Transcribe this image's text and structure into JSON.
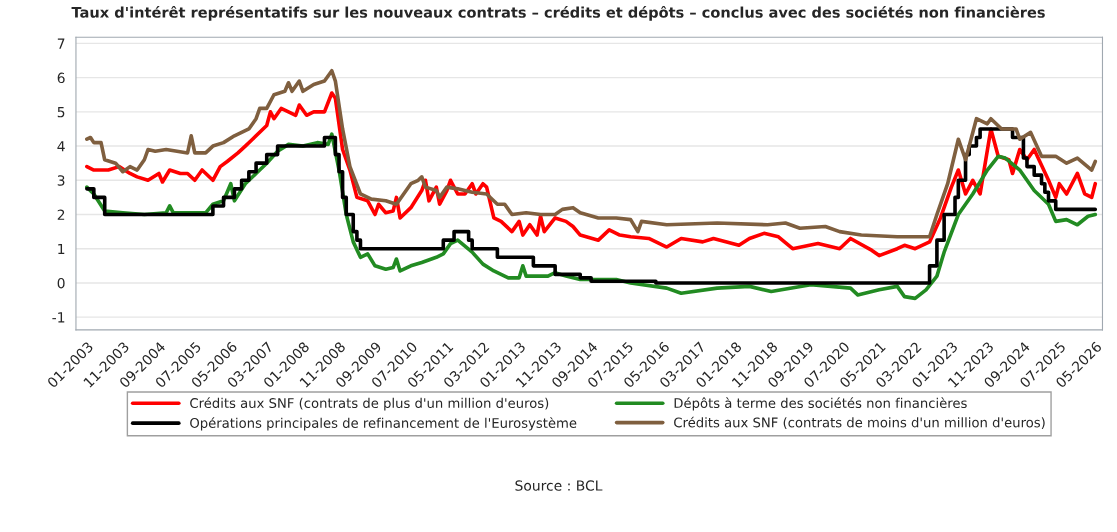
{
  "chart_data": {
    "type": "line",
    "title": "Taux d'intérêt représentatifs sur les nouveaux contrats – crédits et dépôts – conclus avec des sociétés non financières",
    "annotations": [
      "Source : BCL"
    ],
    "xlim": [
      "2002-10",
      "2026-07"
    ],
    "ylim": [
      -1.37,
      7.18
    ],
    "yticks": [
      -1,
      0,
      1,
      2,
      3,
      4,
      5,
      6,
      7
    ],
    "xticks": [
      {
        "value": "2003-01",
        "label": "01-2003"
      },
      {
        "value": "2003-11",
        "label": "11-2003"
      },
      {
        "value": "2004-09",
        "label": "09-2004"
      },
      {
        "value": "2005-07",
        "label": "07-2005"
      },
      {
        "value": "2006-05",
        "label": "05-2006"
      },
      {
        "value": "2007-03",
        "label": "03-2007"
      },
      {
        "value": "2008-01",
        "label": "01-2008"
      },
      {
        "value": "2008-11",
        "label": "11-2008"
      },
      {
        "value": "2009-09",
        "label": "09-2009"
      },
      {
        "value": "2010-07",
        "label": "07-2010"
      },
      {
        "value": "2011-05",
        "label": "05-2011"
      },
      {
        "value": "2012-03",
        "label": "03-2012"
      },
      {
        "value": "2013-01",
        "label": "01-2013"
      },
      {
        "value": "2013-11",
        "label": "11-2013"
      },
      {
        "value": "2014-09",
        "label": "09-2014"
      },
      {
        "value": "2015-07",
        "label": "07-2015"
      },
      {
        "value": "2016-05",
        "label": "05-2016"
      },
      {
        "value": "2017-03",
        "label": "03-2017"
      },
      {
        "value": "2018-01",
        "label": "01-2018"
      },
      {
        "value": "2018-11",
        "label": "11-2018"
      },
      {
        "value": "2019-09",
        "label": "09-2019"
      },
      {
        "value": "2020-07",
        "label": "07-2020"
      },
      {
        "value": "2021-05",
        "label": "05-2021"
      },
      {
        "value": "2022-03",
        "label": "03-2022"
      },
      {
        "value": "2023-01",
        "label": "01-2023"
      },
      {
        "value": "2023-11",
        "label": "11-2023"
      },
      {
        "value": "2024-09",
        "label": "09-2024"
      },
      {
        "value": "2025-07",
        "label": "07-2025"
      },
      {
        "value": "2026-05",
        "label": "05-2026"
      }
    ],
    "grid": "y",
    "legend": "bottom",
    "marker": "none",
    "line_style": "solid",
    "series": [
      {
        "name": "Crédits aux SNF (contrats de plus d'un million d'euros)",
        "color": "#ff0000",
        "x": [
          "2003-01",
          "2003-03",
          "2003-07",
          "2003-10",
          "2004-01",
          "2004-03",
          "2004-06",
          "2004-09",
          "2004-10",
          "2004-12",
          "2005-03",
          "2005-05",
          "2005-07",
          "2005-09",
          "2005-12",
          "2006-02",
          "2006-04",
          "2006-07",
          "2006-09",
          "2006-11",
          "2007-03",
          "2007-04",
          "2007-05",
          "2007-07",
          "2007-09",
          "2007-11",
          "2007-12",
          "2008-02",
          "2008-04",
          "2008-07",
          "2008-09",
          "2008-10",
          "2008-12",
          "2009-02",
          "2009-04",
          "2009-07",
          "2009-09",
          "2009-10",
          "2009-12",
          "2010-02",
          "2010-03",
          "2010-04",
          "2010-07",
          "2010-10",
          "2010-11",
          "2010-12",
          "2011-02",
          "2011-03",
          "2011-05",
          "2011-06",
          "2011-08",
          "2011-10",
          "2011-12",
          "2012-01",
          "2012-03",
          "2012-04",
          "2012-06",
          "2012-08",
          "2012-11",
          "2013-01",
          "2013-02",
          "2013-04",
          "2013-06",
          "2013-07",
          "2013-08",
          "2013-11",
          "2014-02",
          "2014-04",
          "2014-06",
          "2014-11",
          "2015-02",
          "2015-05",
          "2015-08",
          "2016-01",
          "2016-06",
          "2016-10",
          "2017-04",
          "2017-07",
          "2018-02",
          "2018-05",
          "2018-09",
          "2019-01",
          "2019-05",
          "2019-12",
          "2020-06",
          "2020-09",
          "2021-03",
          "2021-05",
          "2021-10",
          "2021-12",
          "2022-03",
          "2022-07",
          "2022-10",
          "2023-01",
          "2023-03",
          "2023-05",
          "2023-07",
          "2023-09",
          "2023-12",
          "2024-02",
          "2024-05",
          "2024-06",
          "2024-08",
          "2024-10",
          "2024-12",
          "2025-04",
          "2025-06",
          "2025-07",
          "2025-09",
          "2025-12",
          "2026-02",
          "2026-04",
          "2026-05"
        ],
        "values": [
          3.4,
          3.3,
          3.3,
          3.4,
          3.2,
          3.1,
          3.0,
          3.2,
          2.95,
          3.3,
          3.2,
          3.2,
          3.0,
          3.3,
          3.0,
          3.4,
          3.55,
          3.8,
          4.0,
          4.2,
          4.6,
          5.0,
          4.8,
          5.1,
          5.0,
          4.9,
          5.2,
          4.9,
          5.0,
          5.0,
          5.55,
          5.4,
          3.9,
          3.3,
          2.5,
          2.4,
          2.0,
          2.3,
          2.05,
          2.1,
          2.5,
          1.9,
          2.2,
          2.7,
          3.0,
          2.4,
          2.8,
          2.3,
          2.7,
          3.0,
          2.6,
          2.6,
          2.9,
          2.6,
          2.9,
          2.8,
          1.9,
          1.8,
          1.5,
          1.8,
          1.4,
          1.7,
          1.4,
          1.95,
          1.5,
          1.9,
          1.8,
          1.65,
          1.4,
          1.25,
          1.55,
          1.4,
          1.35,
          1.3,
          1.05,
          1.3,
          1.2,
          1.3,
          1.1,
          1.3,
          1.45,
          1.35,
          1.0,
          1.15,
          1.0,
          1.3,
          0.95,
          0.8,
          1.0,
          1.1,
          1.0,
          1.2,
          1.9,
          2.8,
          3.3,
          2.6,
          3.0,
          2.6,
          4.5,
          3.7,
          3.6,
          3.2,
          3.9,
          3.6,
          3.9,
          3.0,
          2.5,
          2.9,
          2.6,
          3.2,
          2.6,
          2.5,
          2.9
        ]
      },
      {
        "name": "Dépôts à terme des sociétés non financières",
        "color": "#228b22",
        "x": [
          "2003-01",
          "2003-03",
          "2003-06",
          "2003-11",
          "2004-05",
          "2004-11",
          "2004-12",
          "2005-01",
          "2005-10",
          "2005-12",
          "2006-03",
          "2006-05",
          "2006-06",
          "2006-09",
          "2006-12",
          "2007-03",
          "2007-06",
          "2007-09",
          "2008-01",
          "2008-05",
          "2008-08",
          "2008-09",
          "2008-11",
          "2009-01",
          "2009-03",
          "2009-05",
          "2009-07",
          "2009-09",
          "2009-12",
          "2010-02",
          "2010-03",
          "2010-04",
          "2010-07",
          "2010-10",
          "2011-02",
          "2011-04",
          "2011-06",
          "2011-08",
          "2011-12",
          "2012-03",
          "2012-06",
          "2012-10",
          "2013-01",
          "2013-02",
          "2013-03",
          "2013-09",
          "2013-11",
          "2014-02",
          "2014-06",
          "2015-04",
          "2015-08",
          "2016-06",
          "2016-10",
          "2017-08",
          "2018-05",
          "2018-11",
          "2019-10",
          "2020-09",
          "2020-11",
          "2021-05",
          "2021-10",
          "2021-12",
          "2022-03",
          "2022-06",
          "2022-09",
          "2022-11",
          "2023-03",
          "2023-07",
          "2023-11",
          "2024-02",
          "2024-04",
          "2024-08",
          "2024-12",
          "2025-04",
          "2025-06",
          "2025-09",
          "2025-12",
          "2026-03",
          "2026-05"
        ],
        "values": [
          2.8,
          2.6,
          2.1,
          2.05,
          2.0,
          2.05,
          2.25,
          2.05,
          2.05,
          2.3,
          2.4,
          2.9,
          2.4,
          2.9,
          3.2,
          3.5,
          3.85,
          4.05,
          4.0,
          4.1,
          4.05,
          4.35,
          3.3,
          2.0,
          1.2,
          0.75,
          0.85,
          0.5,
          0.4,
          0.45,
          0.7,
          0.35,
          0.5,
          0.6,
          0.75,
          0.85,
          1.15,
          1.25,
          0.9,
          0.55,
          0.35,
          0.15,
          0.15,
          0.5,
          0.2,
          0.2,
          0.3,
          0.2,
          0.1,
          0.1,
          0.0,
          -0.15,
          -0.3,
          -0.15,
          -0.1,
          -0.25,
          -0.05,
          -0.15,
          -0.35,
          -0.2,
          -0.1,
          -0.4,
          -0.45,
          -0.2,
          0.2,
          0.9,
          2.0,
          2.6,
          3.3,
          3.7,
          3.65,
          3.3,
          2.7,
          2.3,
          1.8,
          1.85,
          1.7,
          1.95,
          2.0
        ]
      },
      {
        "name": "Opérations principales de refinancement de l'Eurosystème",
        "color": "#000000",
        "type": "step",
        "x": [
          "2003-01",
          "2003-03",
          "2003-06",
          "2005-12",
          "2006-03",
          "2006-06",
          "2006-08",
          "2006-10",
          "2006-12",
          "2007-03",
          "2007-06",
          "2008-07",
          "2008-10",
          "2008-11",
          "2008-12",
          "2009-01",
          "2009-03",
          "2009-04",
          "2009-05",
          "2011-04",
          "2011-07",
          "2011-11",
          "2011-12",
          "2012-07",
          "2013-05",
          "2013-11",
          "2014-06",
          "2014-09",
          "2016-03",
          "2022-07",
          "2022-09",
          "2022-11",
          "2023-02",
          "2023-03",
          "2023-05",
          "2023-06",
          "2023-08",
          "2023-09",
          "2024-06",
          "2024-09",
          "2024-10",
          "2024-12",
          "2025-02",
          "2025-03",
          "2025-04",
          "2025-06",
          "2026-05"
        ],
        "values": [
          2.75,
          2.5,
          2.0,
          2.25,
          2.5,
          2.75,
          3.0,
          3.25,
          3.5,
          3.75,
          4.0,
          4.25,
          3.75,
          3.25,
          2.5,
          2.0,
          1.5,
          1.25,
          1.0,
          1.25,
          1.5,
          1.25,
          1.0,
          0.75,
          0.5,
          0.25,
          0.15,
          0.05,
          0.0,
          0.5,
          1.25,
          2.0,
          2.5,
          3.0,
          3.75,
          4.0,
          4.25,
          4.5,
          4.25,
          3.65,
          3.4,
          3.15,
          2.9,
          2.65,
          2.4,
          2.15,
          2.15
        ]
      },
      {
        "name": "Crédits aux SNF (contrats de moins d'un million d'euros)",
        "color": "#7f5f3f",
        "x": [
          "2003-01",
          "2003-02",
          "2003-03",
          "2003-05",
          "2003-06",
          "2003-09",
          "2003-11",
          "2004-01",
          "2004-03",
          "2004-05",
          "2004-06",
          "2004-08",
          "2004-11",
          "2005-02",
          "2005-05",
          "2005-06",
          "2005-07",
          "2005-10",
          "2005-12",
          "2006-03",
          "2006-06",
          "2006-08",
          "2006-10",
          "2006-12",
          "2007-01",
          "2007-03",
          "2007-05",
          "2007-08",
          "2007-09",
          "2007-10",
          "2007-12",
          "2008-01",
          "2008-04",
          "2008-07",
          "2008-09",
          "2008-10",
          "2008-12",
          "2009-02",
          "2009-05",
          "2009-08",
          "2009-12",
          "2010-03",
          "2010-07",
          "2010-09",
          "2010-10",
          "2010-11",
          "2011-02",
          "2011-03",
          "2011-05",
          "2011-08",
          "2011-12",
          "2012-04",
          "2012-07",
          "2012-09",
          "2012-11",
          "2013-03",
          "2013-07",
          "2013-11",
          "2014-01",
          "2014-04",
          "2014-06",
          "2014-11",
          "2015-04",
          "2015-08",
          "2015-10",
          "2015-11",
          "2016-06",
          "2017-08",
          "2018-10",
          "2019-03",
          "2019-07",
          "2020-02",
          "2020-06",
          "2020-12",
          "2021-10",
          "2022-07",
          "2022-09",
          "2022-12",
          "2023-03",
          "2023-05",
          "2023-08",
          "2023-11",
          "2023-12",
          "2024-03",
          "2024-07",
          "2024-08",
          "2024-11",
          "2025-02",
          "2025-06",
          "2025-09",
          "2025-12",
          "2026-04",
          "2026-05"
        ],
        "values": [
          4.2,
          4.25,
          4.1,
          4.1,
          3.6,
          3.5,
          3.25,
          3.4,
          3.3,
          3.6,
          3.9,
          3.85,
          3.9,
          3.85,
          3.8,
          4.3,
          3.8,
          3.8,
          4.0,
          4.1,
          4.3,
          4.4,
          4.5,
          4.8,
          5.1,
          5.1,
          5.5,
          5.6,
          5.85,
          5.6,
          5.9,
          5.6,
          5.8,
          5.9,
          6.2,
          5.9,
          4.5,
          3.4,
          2.6,
          2.45,
          2.4,
          2.3,
          2.9,
          3.0,
          3.1,
          2.8,
          2.7,
          2.5,
          2.8,
          2.75,
          2.65,
          2.6,
          2.3,
          2.3,
          2.0,
          2.05,
          2.0,
          2.0,
          2.15,
          2.2,
          2.05,
          1.9,
          1.9,
          1.85,
          1.5,
          1.8,
          1.7,
          1.75,
          1.7,
          1.75,
          1.6,
          1.65,
          1.5,
          1.4,
          1.35,
          1.35,
          2.0,
          2.9,
          4.2,
          3.6,
          4.8,
          4.65,
          4.8,
          4.5,
          4.5,
          4.2,
          4.4,
          3.7,
          3.7,
          3.5,
          3.65,
          3.3,
          3.55
        ]
      }
    ]
  }
}
